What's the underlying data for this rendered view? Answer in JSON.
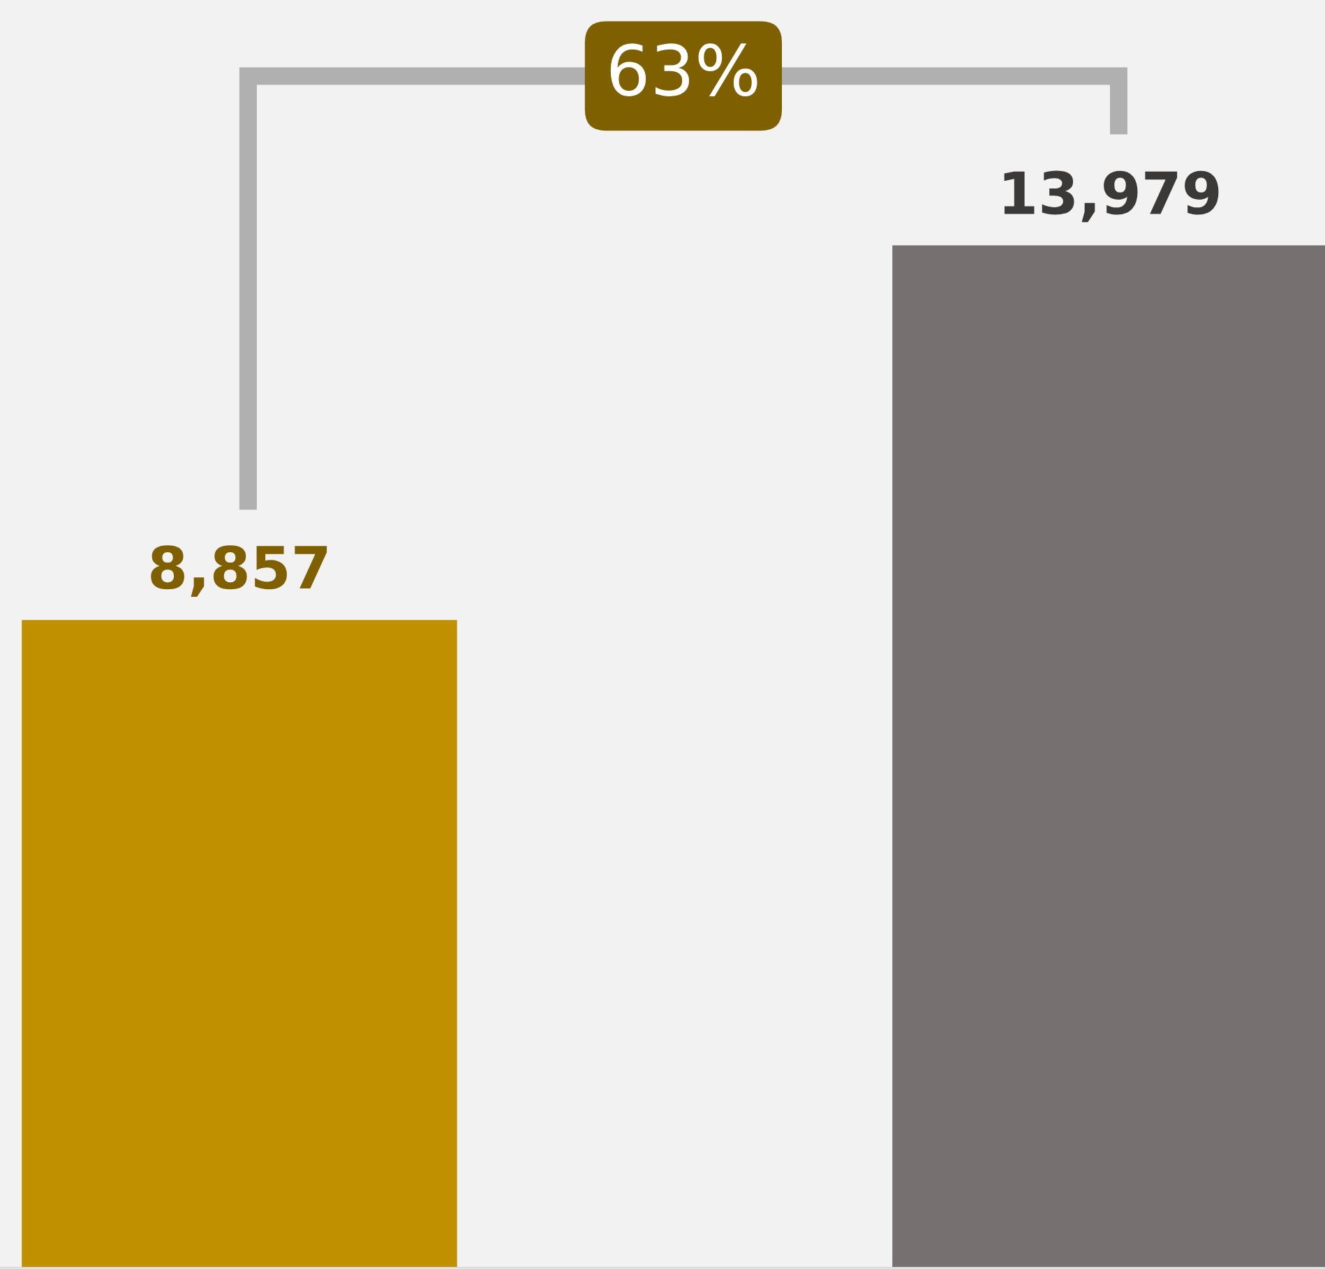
{
  "chart_data": {
    "type": "bar",
    "categories": [
      null,
      null
    ],
    "values": [
      8857,
      13979
    ],
    "colors": [
      "#c09000",
      "#767170"
    ],
    "value_labels": [
      "8,857",
      "13,979"
    ],
    "annotations": [
      "63%"
    ]
  }
}
